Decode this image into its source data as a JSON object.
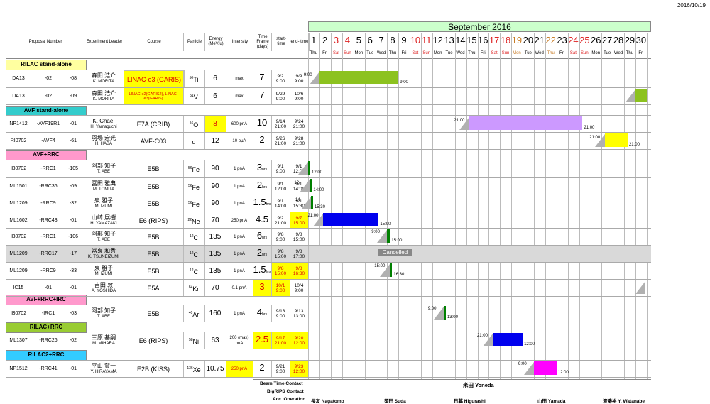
{
  "date": "2016/10/19",
  "month_title": "September 2016",
  "header": {
    "proposal": "Proposal Number",
    "leader": "Experiment Leader",
    "course": "Course",
    "particle": "Particle",
    "energy": "Energy (MeV/u)",
    "intensity": "Intensity",
    "timeframe": "Time Frame (days)",
    "start": "start- time",
    "end": "end- time"
  },
  "days": [
    "1",
    "2",
    "3",
    "4",
    "5",
    "6",
    "7",
    "8",
    "9",
    "10",
    "11",
    "12",
    "13",
    "14",
    "15",
    "16",
    "17",
    "18",
    "19",
    "20",
    "21",
    "22",
    "23",
    "24",
    "25",
    "26",
    "27",
    "28",
    "29",
    "30"
  ],
  "weekdays": [
    "Thu",
    "Fri",
    "Sat",
    "Sun",
    "Mon",
    "Tue",
    "Wed",
    "Thu",
    "Fri",
    "Sat",
    "Sun",
    "Mon",
    "Tue",
    "Wed",
    "Thu",
    "Fri",
    "Sat",
    "Sun",
    "Mon",
    "Tue",
    "Wed",
    "Thu",
    "Fri",
    "Sat",
    "Sun",
    "Mon",
    "Tue",
    "Wed",
    "Thu",
    "Fri"
  ],
  "sections": {
    "s1": "RILAC stand-alone",
    "s2": "AVF stand-alone",
    "s3": "AVF+RRC",
    "s4": "AVF+RRC+IRC",
    "s5": "RILAC+RRC",
    "s6": "RILAC2+RRC"
  },
  "rows": [
    {
      "p1": "DA13",
      "p2": "-02",
      "p3": "-08",
      "leader_jp": "森田 浩介",
      "leader_en": "K. MORITA",
      "course": "LINAC-e3 (GARIS)",
      "elem": "Ti",
      "mass": "50",
      "energy": "6",
      "intensity": "max",
      "tf": "7",
      "tf_unit": "",
      "start1": "9/2",
      "start2": "9:00",
      "end1": "9/9",
      "end2": "9:00",
      "bar_start": "9:00",
      "bar_end": "9:00"
    },
    {
      "p1": "DA13",
      "p2": "-02",
      "p3": "-09",
      "leader_jp": "森田 浩介",
      "leader_en": "K. MORITA",
      "course": "LINAC-e2(GARIS2), LINAC-e3(GARIS)",
      "elem": "V",
      "mass": "51",
      "energy": "6",
      "intensity": "max",
      "tf": "7",
      "tf_unit": "",
      "start1": "9/29",
      "start2": "9:00",
      "end1": "10/6",
      "end2": "9:00",
      "bar_start": "9:00",
      "bar_end": ""
    },
    {
      "p1": "NP1412",
      "p2": "-AVF19R1",
      "p3": "-01",
      "leader_jp": "K. Chae,",
      "leader_en": "H. Yamaguchi",
      "course": "E7A (CRIB)",
      "elem": "O",
      "mass": "16",
      "energy": "8",
      "intensity": "600 pnA",
      "tf": "10",
      "tf_unit": "",
      "start1": "9/14",
      "start2": "21:00",
      "end1": "9/24",
      "end2": "21:00",
      "bar_start": "21:00",
      "bar_end": "21:00"
    },
    {
      "p1": "RI0702",
      "p2": "-AVF4",
      "p3": "-61",
      "leader_jp": "羽場 宏光",
      "leader_en": "H. HABA",
      "course": "AVF-C03",
      "elem": "d",
      "mass": "",
      "energy": "12",
      "intensity": "10 pμA",
      "tf": "2",
      "tf_unit": "",
      "start1": "9/26",
      "start2": "21:00",
      "end1": "9/28",
      "end2": "21:00",
      "bar_start": "21:00",
      "bar_end": "21:00"
    },
    {
      "p1": "IB0702",
      "p2": "-RRC1",
      "p3": "-105",
      "leader_jp": "阿部 知子",
      "leader_en": "T. ABE",
      "course": "E5B",
      "elem": "Fe",
      "mass": "56",
      "energy": "90",
      "intensity": "1 pnA",
      "tf": "3",
      "tf_unit": "hrs",
      "start1": "9/1",
      "start2": "9:00",
      "end1": "9/1",
      "end2": "12:00",
      "bar_start": "",
      "bar_end": "12:00"
    },
    {
      "p1": "ML1501",
      "p2": "-RRC36",
      "p3": "-09",
      "leader_jp": "冨田 雅典",
      "leader_en": "M. TOMITA",
      "course": "E5B",
      "elem": "Fe",
      "mass": "56",
      "energy": "90",
      "intensity": "1 pnA",
      "tf": "2",
      "tf_unit": "hrs",
      "start1": "9/1",
      "start2": "12:00",
      "end1": "9/1",
      "end2": "14:00",
      "bar_start": "12",
      "bar_end": "14:00"
    },
    {
      "p1": "ML1209",
      "p2": "-RRC9",
      "p3": "-32",
      "leader_jp": "泉 雅子",
      "leader_en": "M. IZUMI",
      "course": "E5B",
      "elem": "Fe",
      "mass": "56",
      "energy": "90",
      "intensity": "1 pnA",
      "tf": "1.5",
      "tf_unit": "hrs",
      "start1": "9/1",
      "start2": "14:00",
      "end1": "9/1",
      "end2": "15:30",
      "bar_start": "14",
      "bar_end": "15:30"
    },
    {
      "p1": "ML1602",
      "p2": "-RRC43",
      "p3": "-01",
      "leader_jp": "山崎 展樹",
      "leader_en": "H. YAMAZAKI",
      "course": "E6 (RIPS)",
      "elem": "Ne",
      "mass": "22",
      "energy": "70",
      "intensity": "250 pnA",
      "tf": "4.5",
      "tf_unit": "",
      "start1": "9/2",
      "start2": "21:00",
      "end1": "9/7",
      "end2": "15:00",
      "bar_start": "21:00",
      "bar_end": "15:00"
    },
    {
      "p1": "IB0702",
      "p2": "-RRC1",
      "p3": "-106",
      "leader_jp": "阿部 知子",
      "leader_en": "T. ABE",
      "course": "E5B",
      "elem": "C",
      "mass": "12",
      "energy": "135",
      "intensity": "1 pnA",
      "tf": "6",
      "tf_unit": "hrs",
      "start1": "9/8",
      "start2": "9:00",
      "end1": "9/8",
      "end2": "15:00",
      "bar_start": "9:00",
      "bar_end": "15:00"
    },
    {
      "p1": "ML1209",
      "p2": "-RRC17",
      "p3": "-17",
      "leader_jp": "常泉 和秀",
      "leader_en": "K. TSUNEIZUMI",
      "course": "E5B",
      "elem": "C",
      "mass": "12",
      "energy": "135",
      "intensity": "1 pnA",
      "tf": "2",
      "tf_unit": "hrs",
      "start1": "9/8",
      "start2": "15:00",
      "end1": "9/8",
      "end2": "17:00",
      "bar_start": "Cancelled",
      "bar_end": ""
    },
    {
      "p1": "ML1209",
      "p2": "-RRC9",
      "p3": "-33",
      "leader_jp": "泉 雅子",
      "leader_en": "M. IZUMI",
      "course": "E5B",
      "elem": "C",
      "mass": "12",
      "energy": "135",
      "intensity": "1 pnA",
      "tf": "1.5",
      "tf_unit": "hrs",
      "start1": "9/8",
      "start2": "15:00",
      "end1": "9/8",
      "end2": "16:30",
      "bar_start": "15:00",
      "bar_end": "16:30"
    },
    {
      "p1": "IC15",
      "p2": "-01",
      "p3": "-01",
      "leader_jp": "吉田 敦",
      "leader_en": "A. YOSHIDA",
      "course": "E5A",
      "elem": "Kr",
      "mass": "84",
      "energy": "70",
      "intensity": "0.1 pnA",
      "tf": "3",
      "tf_unit": "",
      "start1": "10/1",
      "start2": "9:00",
      "end1": "10/4",
      "end2": "9:00",
      "bar_start": "",
      "bar_end": ""
    },
    {
      "p1": "IB0702",
      "p2": "-IRC1",
      "p3": "-03",
      "leader_jp": "阿部 知子",
      "leader_en": "T. ABE",
      "course": "E5B",
      "elem": "Ar",
      "mass": "40",
      "energy": "160",
      "intensity": "1 pnA",
      "tf": "4",
      "tf_unit": "hrs",
      "start1": "9/13",
      "start2": "9:00",
      "end1": "9/13",
      "end2": "13:00",
      "bar_start": "9:00",
      "bar_end": "13:00"
    },
    {
      "p1": "ML1307",
      "p2": "-RRC26",
      "p3": "-02",
      "leader_jp": "三原 基嗣",
      "leader_en": "M. MIHARA",
      "course": "E6 (RIPS)",
      "elem": "Ni",
      "mass": "58",
      "energy": "63",
      "intensity": "200 (max) pnA",
      "tf": "2.5",
      "tf_unit": "",
      "start1": "9/17",
      "start2": "21:00",
      "end1": "9/20",
      "end2": "12:00",
      "bar_start": "21:00",
      "bar_end": "12:00"
    },
    {
      "p1": "NP1512",
      "p2": "-RRC41",
      "p3": "-01",
      "leader_jp": "平山 賀一",
      "leader_en": "Y. HIRAYAMA",
      "course": "E2B (KISS)",
      "elem": "Xe",
      "mass": "136",
      "energy": "10.75",
      "intensity": "250 pnA",
      "tf": "2",
      "tf_unit": "",
      "start1": "9/21",
      "start2": "9:00",
      "end1": "9/23",
      "end2": "12:00",
      "bar_start": "9:00",
      "bar_end": "12:00"
    }
  ],
  "bottom": {
    "beam_contact": "Beam Time Contact",
    "bigrips_contact": "BigRIPS Contact",
    "acc_operation": "Acc. Operation",
    "beam_person": "米田 Yoneda",
    "op1": "長友 Nagatomo",
    "op2": "須田 Suda",
    "op3": "日暮 Higurashi",
    "op4": "山田 Yamada",
    "op5": "渡邉裕 Y. Watanabe"
  },
  "colors": {
    "green_bar": "#8cc21f",
    "purple_bar": "#cc99ff",
    "yellow_bar": "#ffff00",
    "blue_bar": "#0000ee",
    "magenta_bar": "#ff00ff",
    "dark_green": "#008000",
    "sec_yellow": "#ffffa0",
    "sec_cyan": "#33cccc",
    "sec_pink": "#ff99cc",
    "sec_lime": "#99cc33",
    "sec_sky": "#33ccff"
  }
}
